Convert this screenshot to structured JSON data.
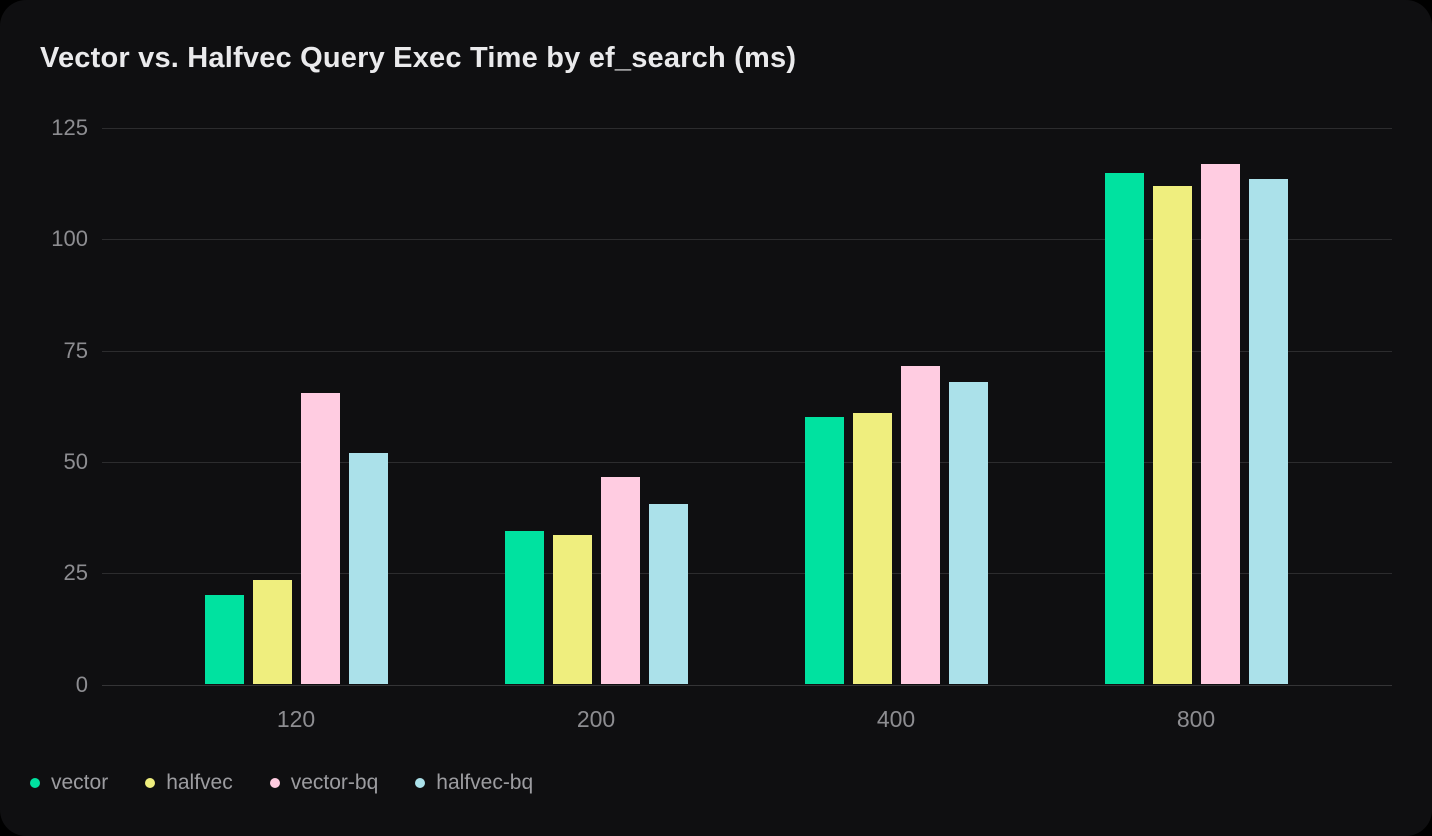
{
  "title": "Vector vs. Halfvec Query Exec Time by ef_search (ms)",
  "colors": {
    "card_background": "#0f0f11",
    "page_background": "#000000",
    "gridline": "#2c2c2e",
    "title_text": "#eaeaec",
    "axis_text": "#8d8d91",
    "legend_text": "#9c9ca0"
  },
  "chart_data": {
    "type": "bar",
    "title": "Vector vs. Halfvec Query Exec Time by ef_search (ms)",
    "categories": [
      "120",
      "200",
      "400",
      "800"
    ],
    "series": [
      {
        "name": "vector",
        "color": "#00e2a0",
        "values": [
          20,
          34.5,
          60,
          115
        ]
      },
      {
        "name": "halfvec",
        "color": "#efee7e",
        "values": [
          23.5,
          33.5,
          61,
          112
        ]
      },
      {
        "name": "vector-bq",
        "color": "#ffcce1",
        "values": [
          65.5,
          46.5,
          71.5,
          117
        ]
      },
      {
        "name": "halfvec-bq",
        "color": "#abe1ea",
        "values": [
          52,
          40.5,
          68,
          113.5
        ]
      }
    ],
    "xlabel": "",
    "ylabel": "",
    "ylim": [
      0,
      125
    ],
    "yticks": [
      0,
      25,
      50,
      75,
      100,
      125
    ],
    "grid": true,
    "legend_position": "bottom-left"
  }
}
